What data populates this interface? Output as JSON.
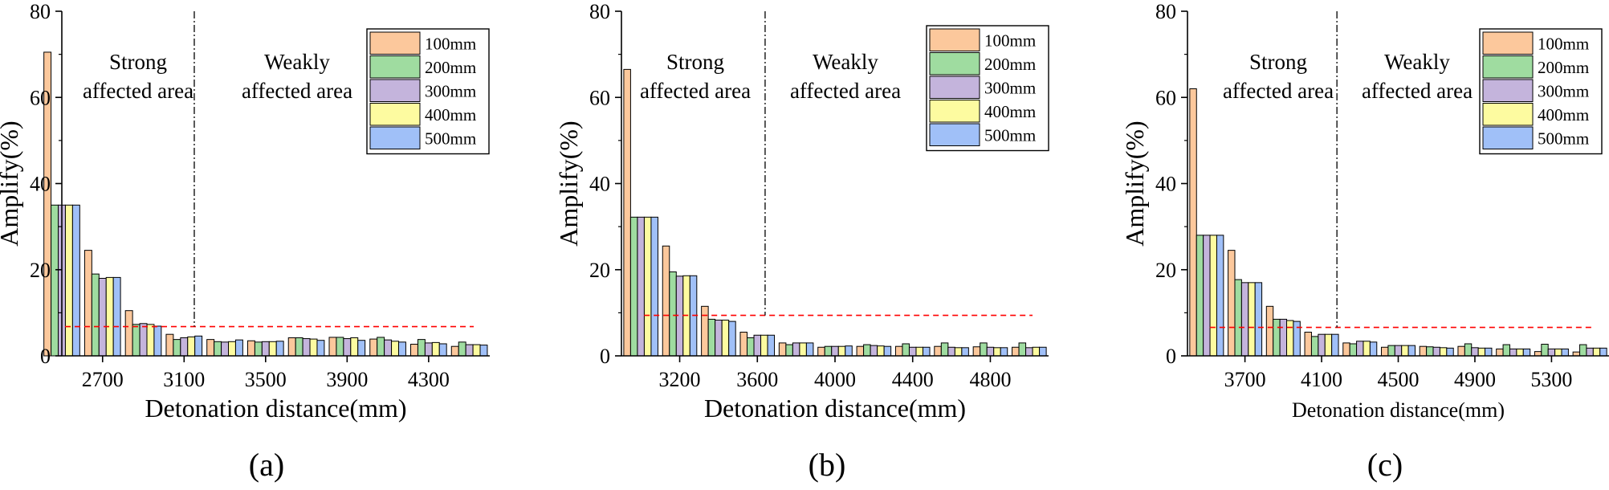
{
  "legend_series": [
    "100mm",
    "200mm",
    "300mm",
    "400mm",
    "500mm"
  ],
  "colors": {
    "100mm": "#fcc89c",
    "200mm": "#9fdca0",
    "300mm": "#c4b4dc",
    "400mm": "#fdfba0",
    "500mm": "#a0c0f8",
    "threshold_line": "#ff0000"
  },
  "chart_data": [
    {
      "panel": "(a)",
      "type": "bar",
      "xlabel": "Detonation distance(mm)",
      "ylabel": "Amplify(%)",
      "ylim": [
        0,
        80
      ],
      "yticks": [
        0,
        20,
        40,
        60,
        80
      ],
      "xlim": [
        2500,
        4600
      ],
      "xticks": [
        2700,
        3100,
        3500,
        3900,
        4300
      ],
      "categories": [
        2500,
        2700,
        2900,
        3100,
        3300,
        3500,
        3700,
        3900,
        4100,
        4300,
        4500
      ],
      "series": [
        {
          "name": "100mm",
          "values": [
            70.5,
            24.5,
            10.5,
            5.0,
            3.8,
            3.5,
            4.2,
            4.3,
            3.9,
            2.7,
            2.2
          ]
        },
        {
          "name": "200mm",
          "values": [
            35.0,
            19.0,
            7.3,
            3.8,
            3.3,
            3.2,
            4.2,
            4.3,
            4.3,
            3.8,
            3.2
          ]
        },
        {
          "name": "300mm",
          "values": [
            35.0,
            18.0,
            7.5,
            4.2,
            3.2,
            3.3,
            4.0,
            4.0,
            3.7,
            3.0,
            2.6
          ]
        },
        {
          "name": "400mm",
          "values": [
            35.0,
            18.2,
            7.3,
            4.4,
            3.3,
            3.3,
            3.9,
            4.2,
            3.4,
            3.1,
            2.6
          ]
        },
        {
          "name": "500mm",
          "values": [
            35.0,
            18.2,
            6.9,
            4.6,
            3.7,
            3.4,
            3.6,
            3.6,
            3.2,
            2.8,
            2.5
          ]
        }
      ],
      "threshold": 6.8,
      "divider_x": 3150,
      "region_labels": {
        "strong": [
          "Strong",
          "affected area"
        ],
        "weak": [
          "Weakly",
          "affected area"
        ]
      },
      "caption": "(a)"
    },
    {
      "panel": "(b)",
      "type": "bar",
      "xlabel": "Detonation distance(mm)",
      "ylabel": "Amplify(%)",
      "ylim": [
        0,
        80
      ],
      "yticks": [
        0,
        20,
        40,
        60,
        80
      ],
      "xlim": [
        2900,
        5100
      ],
      "xticks": [
        3200,
        3600,
        4000,
        4400,
        4800
      ],
      "categories": [
        3000,
        3200,
        3400,
        3600,
        3800,
        4000,
        4200,
        4400,
        4600,
        4800,
        5000
      ],
      "series": [
        {
          "name": "100mm",
          "values": [
            66.5,
            25.5,
            11.5,
            5.5,
            3.0,
            2.0,
            2.2,
            2.2,
            2.2,
            2.1,
            2.0
          ]
        },
        {
          "name": "200mm",
          "values": [
            32.2,
            19.5,
            8.5,
            4.2,
            2.6,
            2.2,
            2.6,
            2.8,
            3.0,
            3.0,
            3.0
          ]
        },
        {
          "name": "300mm",
          "values": [
            32.2,
            18.5,
            8.3,
            4.8,
            3.0,
            2.2,
            2.4,
            2.0,
            2.0,
            2.0,
            1.9
          ]
        },
        {
          "name": "400mm",
          "values": [
            32.2,
            18.6,
            8.3,
            4.8,
            3.0,
            2.2,
            2.3,
            2.0,
            1.9,
            1.9,
            2.0
          ]
        },
        {
          "name": "500mm",
          "values": [
            32.2,
            18.6,
            8.0,
            4.8,
            3.0,
            2.3,
            2.2,
            2.0,
            1.9,
            1.9,
            2.0
          ]
        }
      ],
      "threshold": 9.4,
      "divider_x": 3640,
      "region_labels": {
        "strong": [
          "Strong",
          "affected area"
        ],
        "weak": [
          "Weakly",
          "affected area"
        ]
      },
      "caption": "(b)"
    },
    {
      "panel": "(c)",
      "type": "bar",
      "xlabel": "Detonation distance(mm)",
      "ylabel": "Amplify(%)",
      "ylim": [
        0,
        80
      ],
      "yticks": [
        0,
        20,
        40,
        60,
        80
      ],
      "xlim": [
        3400,
        5600
      ],
      "xticks": [
        3700,
        4100,
        4500,
        4900,
        5300
      ],
      "categories": [
        3500,
        3700,
        3900,
        4100,
        4300,
        4500,
        4700,
        4900,
        5100,
        5300,
        5500
      ],
      "series": [
        {
          "name": "100mm",
          "values": [
            62.0,
            24.5,
            11.5,
            5.5,
            3.0,
            2.0,
            2.2,
            2.2,
            1.6,
            1.0,
            0.9
          ]
        },
        {
          "name": "200mm",
          "values": [
            28.0,
            17.7,
            8.5,
            4.5,
            2.8,
            2.4,
            2.1,
            2.8,
            2.6,
            2.7,
            2.6
          ]
        },
        {
          "name": "300mm",
          "values": [
            28.0,
            17.0,
            8.5,
            5.0,
            3.4,
            2.4,
            2.0,
            1.9,
            1.6,
            1.6,
            1.8
          ]
        },
        {
          "name": "400mm",
          "values": [
            28.0,
            17.0,
            8.2,
            5.0,
            3.4,
            2.4,
            1.9,
            1.8,
            1.6,
            1.6,
            1.8
          ]
        },
        {
          "name": "500mm",
          "values": [
            28.0,
            17.0,
            8.0,
            5.0,
            3.2,
            2.4,
            1.8,
            1.8,
            1.6,
            1.6,
            1.8
          ]
        }
      ],
      "threshold": 6.6,
      "divider_x": 4180,
      "region_labels": {
        "strong": [
          "Strong",
          "affected area"
        ],
        "weak": [
          "Weakly",
          "affected area"
        ]
      },
      "caption": "(c)"
    }
  ]
}
